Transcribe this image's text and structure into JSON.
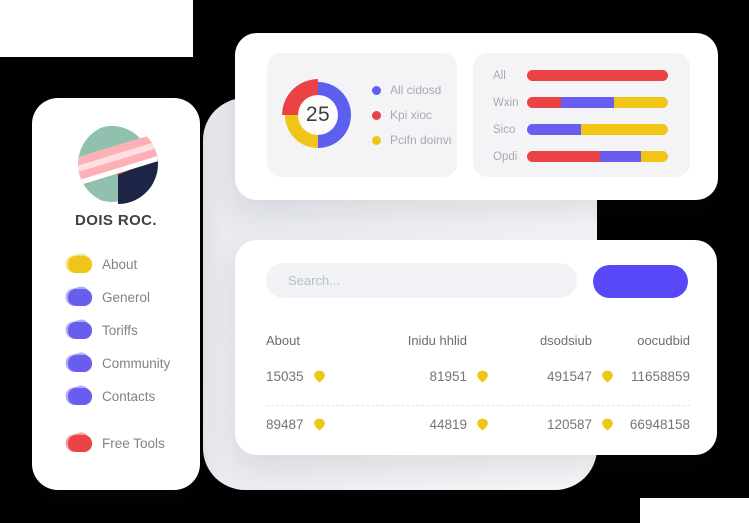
{
  "palette": {
    "blue": "#5d5fef",
    "purple": "#695df0",
    "red": "#ea4245",
    "yellow": "#f0c517",
    "button": "#5848f8"
  },
  "sidebar": {
    "brand": "DOIS ROC.",
    "items": [
      {
        "label": "About",
        "color": "yellow"
      },
      {
        "label": "Generol",
        "color": "purple"
      },
      {
        "label": "Toriffs",
        "color": "purple"
      },
      {
        "label": "Community",
        "color": "purple"
      },
      {
        "label": "Contacts",
        "color": "purple"
      }
    ],
    "footer_item": {
      "label": "Free Tools",
      "color": "red"
    }
  },
  "donut_card": {
    "center_value": "25",
    "segments": [
      {
        "color": "blue",
        "pct": 50
      },
      {
        "color": "yellow",
        "pct": 25
      },
      {
        "color": "red",
        "pct": 25,
        "exploded": true
      }
    ],
    "legend": [
      {
        "label": "All cidosd",
        "color": "blue"
      },
      {
        "label": "Kpi xioc",
        "color": "red"
      },
      {
        "label": "Pcifn doinvi",
        "color": "yellow"
      }
    ]
  },
  "bars_card": {
    "rows": [
      {
        "label": "All",
        "segments": [
          {
            "color": "red",
            "pct": 100
          }
        ]
      },
      {
        "label": "Wxin",
        "segments": [
          {
            "color": "red",
            "pct": 24
          },
          {
            "color": "purple",
            "pct": 38
          },
          {
            "color": "yellow",
            "pct": 38
          }
        ]
      },
      {
        "label": "Sico",
        "segments": [
          {
            "color": "purple",
            "pct": 38
          },
          {
            "color": "yellow",
            "pct": 62
          }
        ]
      },
      {
        "label": "Opdi",
        "segments": [
          {
            "color": "red",
            "pct": 52
          },
          {
            "color": "purple",
            "pct": 29
          },
          {
            "color": "yellow",
            "pct": 19
          }
        ]
      }
    ]
  },
  "table_card": {
    "search_placeholder": "Search...",
    "columns": [
      "About",
      "Inidu hhlid",
      "dsodsiub",
      "oocudbid"
    ],
    "rows": [
      {
        "cells": [
          {
            "value": "15035",
            "icon": "shield-icon"
          },
          {
            "value": "81951",
            "icon": "shield-icon"
          },
          {
            "value": "491547",
            "icon": "shield-icon"
          },
          {
            "value": "11658859"
          }
        ]
      },
      {
        "cells": [
          {
            "value": "89487",
            "icon": "shield-icon"
          },
          {
            "value": "44819",
            "icon": "shield-icon"
          },
          {
            "value": "120587",
            "icon": "shield-icon"
          },
          {
            "value": "66948158"
          }
        ]
      }
    ]
  },
  "chart_data": [
    {
      "type": "pie",
      "title": "",
      "center_label": "25",
      "labels": [
        "All cidosd",
        "Kpi xioc",
        "Pcifn doinvi"
      ],
      "values": [
        50,
        25,
        25
      ],
      "colors": [
        "#5d5fef",
        "#ea4245",
        "#f0c517"
      ],
      "legend_position": "right",
      "note": "donut; red slice exploded"
    },
    {
      "type": "bar",
      "title": "",
      "orientation": "horizontal-stacked",
      "categories": [
        "All",
        "Wxin",
        "Sico",
        "Opdi"
      ],
      "series": [
        {
          "name": "red",
          "values": [
            100,
            24,
            0,
            52
          ]
        },
        {
          "name": "purple",
          "values": [
            0,
            38,
            38,
            29
          ]
        },
        {
          "name": "yellow",
          "values": [
            0,
            38,
            62,
            19
          ]
        }
      ],
      "xlim": [
        0,
        100
      ]
    }
  ]
}
